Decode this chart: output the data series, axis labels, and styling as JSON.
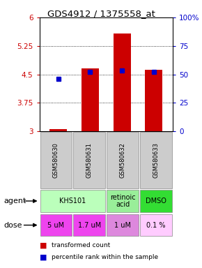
{
  "title": "GDS4912 / 1375558_at",
  "samples": [
    "GSM580630",
    "GSM580631",
    "GSM580632",
    "GSM580633"
  ],
  "bar_values": [
    3.05,
    4.65,
    5.58,
    4.62
  ],
  "bar_bottom": 3.0,
  "percentile_values": [
    4.38,
    4.57,
    4.6,
    4.57
  ],
  "bar_color": "#cc0000",
  "dot_color": "#0000cc",
  "ylim_left": [
    3.0,
    6.0
  ],
  "yticks_left": [
    3.0,
    3.75,
    4.5,
    5.25,
    6.0
  ],
  "ytick_labels_left": [
    "3",
    "3.75",
    "4.5",
    "5.25",
    "6"
  ],
  "ytick_labels_right": [
    "0",
    "25",
    "50",
    "75",
    "100%"
  ],
  "agent_defs": [
    {
      "start": 0,
      "end": 2,
      "label": "KHS101",
      "color": "#bbffbb"
    },
    {
      "start": 2,
      "end": 3,
      "label": "retinoic\nacid",
      "color": "#99ee99"
    },
    {
      "start": 3,
      "end": 4,
      "label": "DMSO",
      "color": "#33dd33"
    }
  ],
  "doses": [
    "5 uM",
    "1.7 uM",
    "1 uM",
    "0.1 %"
  ],
  "dose_colors": [
    "#ee44ee",
    "#ee44ee",
    "#dd88dd",
    "#ffccff"
  ],
  "sample_box_color": "#cccccc",
  "background_color": "#ffffff",
  "fig_w": 2.9,
  "fig_h": 3.84,
  "dpi": 100
}
